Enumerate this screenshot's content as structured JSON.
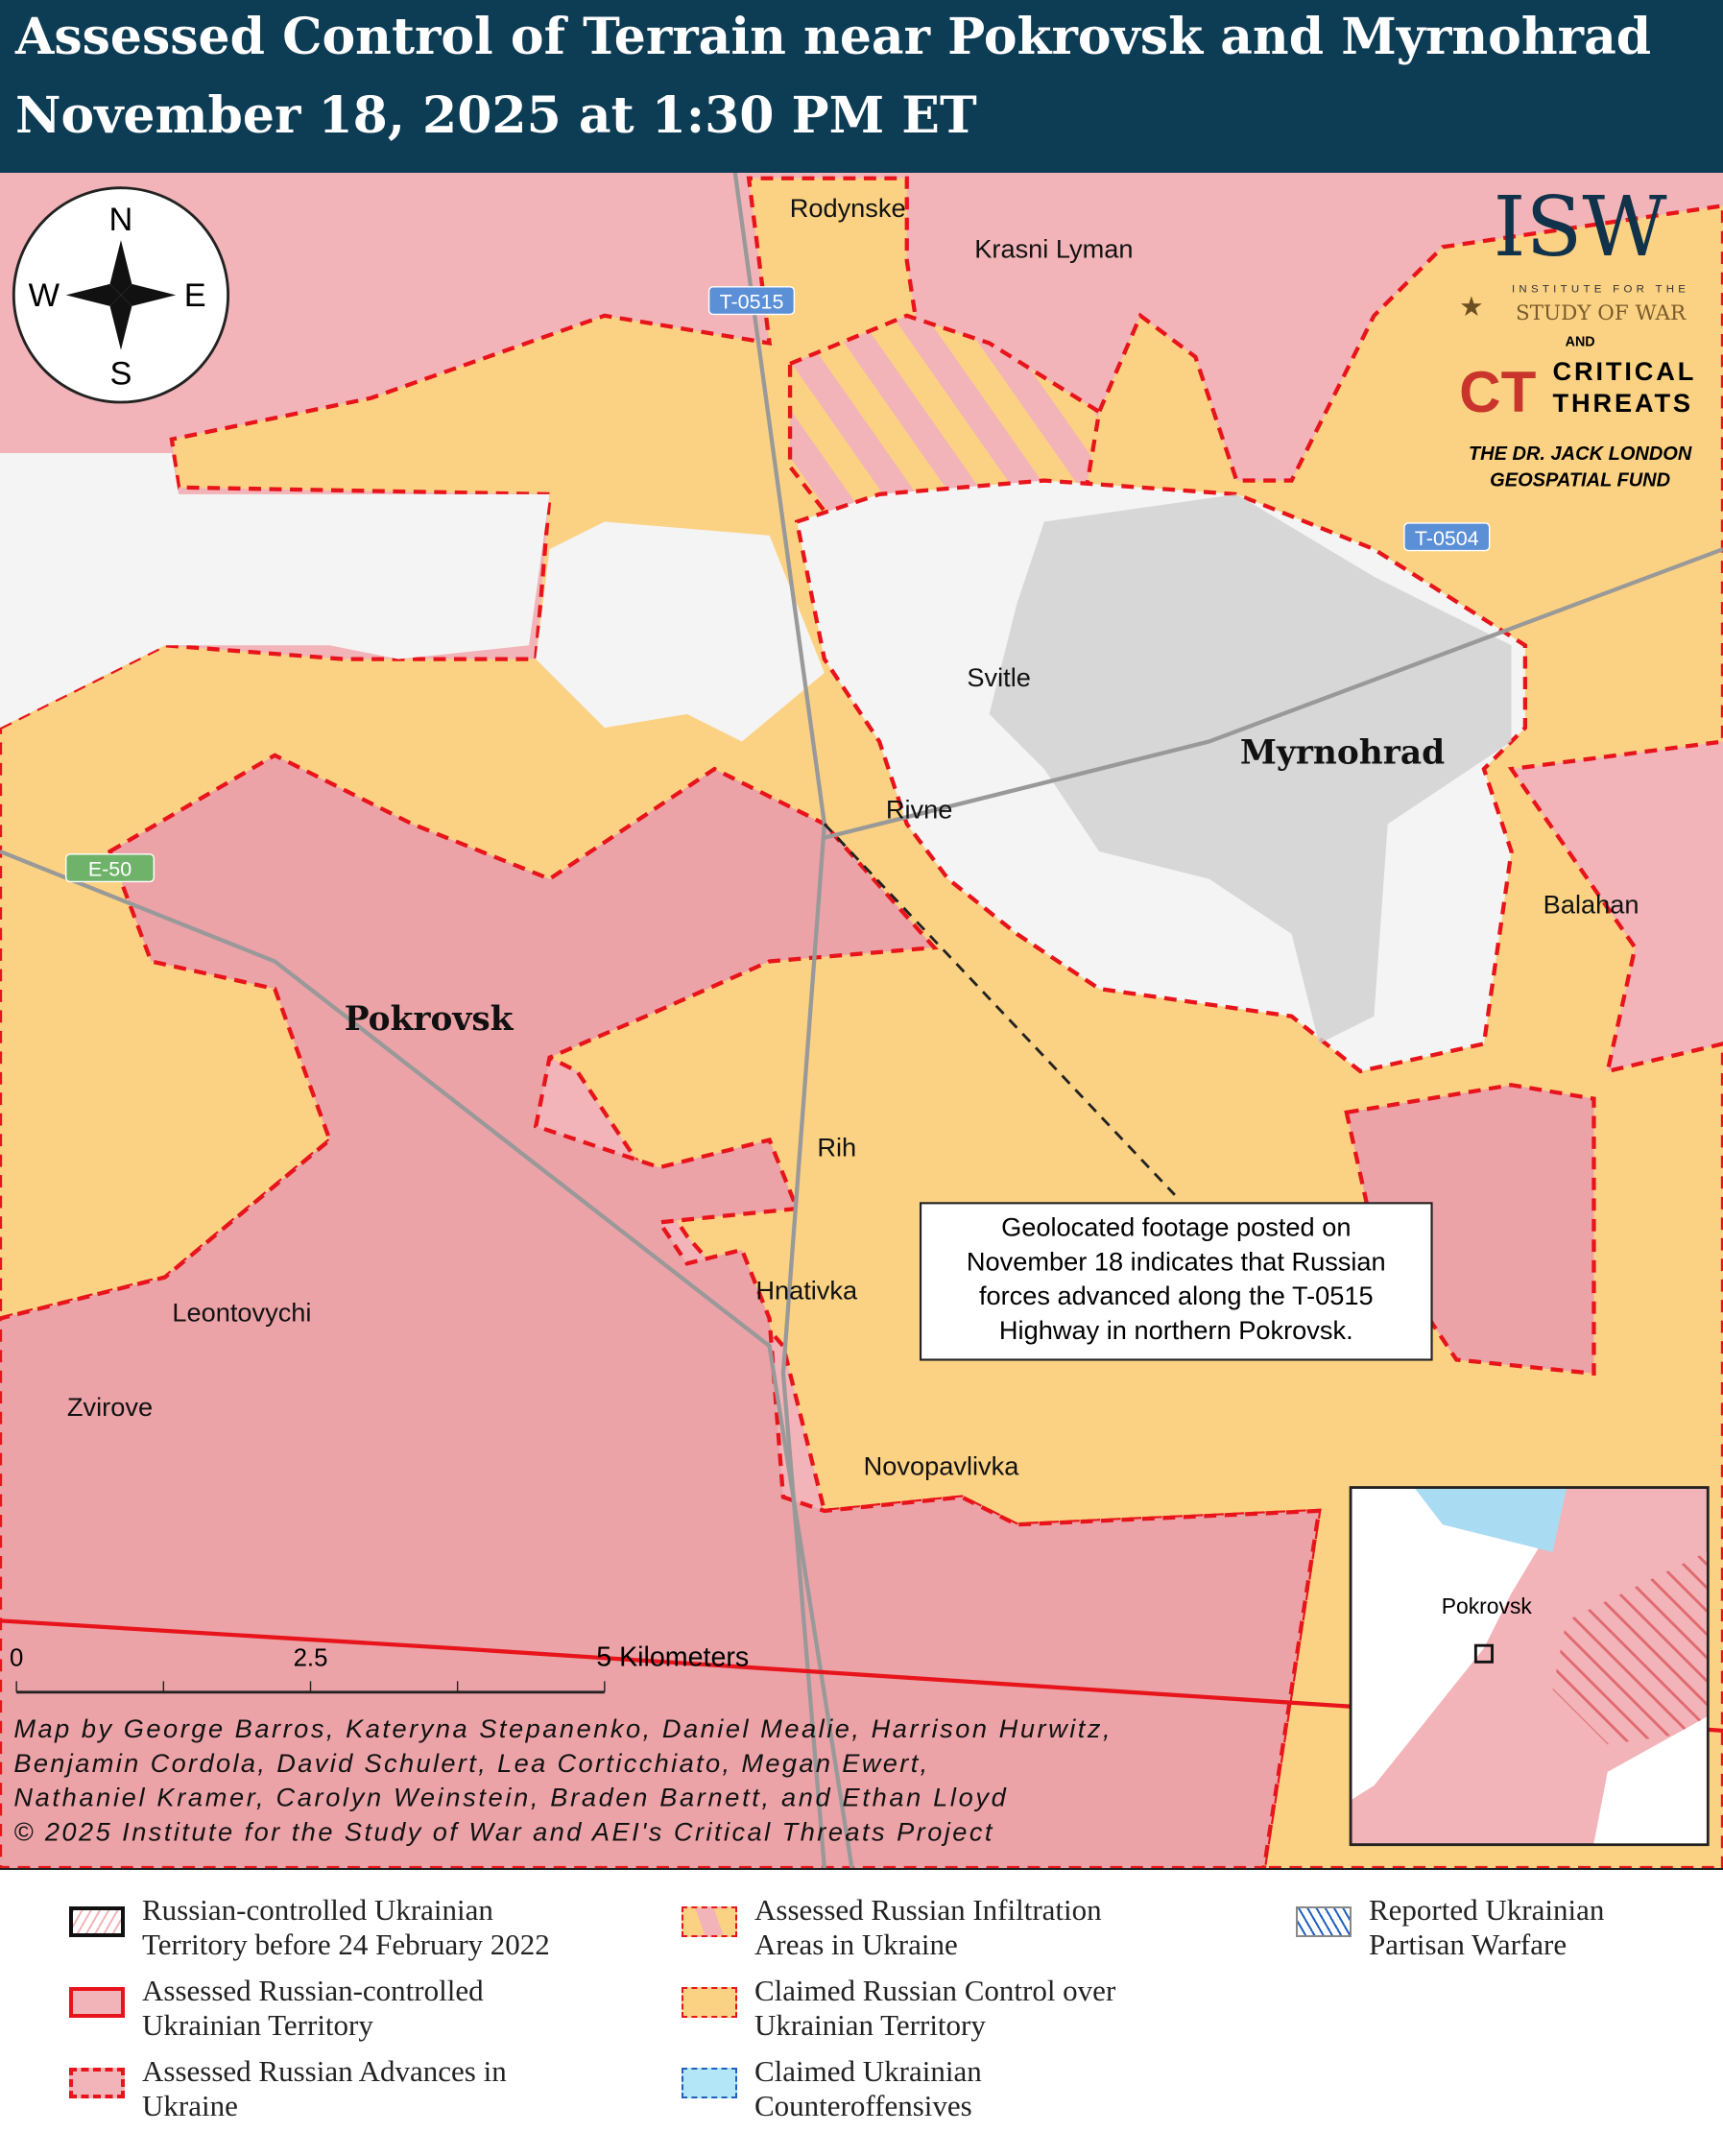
{
  "header": {
    "title": "Assessed Control of Terrain near Pokrovsk and Myrnohrad",
    "subtitle": "November 18, 2025 at 1:30 PM ET"
  },
  "compass": {
    "n": "N",
    "s": "S",
    "e": "E",
    "w": "W"
  },
  "colors": {
    "russian_controlled": "#f2b4b8",
    "claimed": "#fbd283",
    "ukrainian": "#f4f4f4",
    "urban": "#c9c9c9",
    "advance_line": "#e8141b",
    "header": "#0d3c55"
  },
  "places": {
    "rodynske": "Rodynske",
    "krasni_lyman": "Krasni Lyman",
    "svitle": "Svitle",
    "myrnohrad": "Myrnohrad",
    "rivne": "Rivne",
    "balahan": "Balahan",
    "pokrovsk": "Pokrovsk",
    "rih": "Rih",
    "hnativka": "Hnativka",
    "leontovychi": "Leontovychi",
    "zvirove": "Zvirove",
    "novopavlivka": "Novopavlivka"
  },
  "roads": {
    "t0515": "T-0515",
    "t0504": "T-0504",
    "e50": "E-50"
  },
  "logo": {
    "isw": "ISW",
    "isw_line1": "INSTITUTE FOR THE",
    "isw_line2": "STUDY OF WAR",
    "and": "AND",
    "ct": "CT",
    "ct_line1": "CRITICAL",
    "ct_line2": "THREATS",
    "fund_line1": "THE DR. JACK LONDON",
    "fund_line2": "GEOSPATIAL FUND"
  },
  "callout": {
    "lines": [
      "Geolocated footage posted on",
      "November 18 indicates that Russian",
      "forces advanced along the T-0515",
      "Highway in northern Pokrovsk."
    ]
  },
  "scale": {
    "t0": "0",
    "t1": "2.5",
    "t2": "5 Kilometers"
  },
  "credits": [
    "Map by George Barros, Kateryna Stepanenko, Daniel Mealie, Harrison Hurwitz,",
    "Benjamin Cordola, David Schulert, Lea Corticchiato, Megan Ewert,",
    "Nathaniel Kramer, Carolyn Weinstein, Braden Barnett, and Ethan Lloyd",
    "© 2025 Institute for the Study of War and AEI's Critical Threats Project"
  ],
  "inset": {
    "label": "Pokrovsk"
  },
  "legend": [
    {
      "label1": "Russian-controlled Ukrainian",
      "label2": "Territory before 24 February 2022"
    },
    {
      "label1": "Assessed Russian-controlled",
      "label2": "Ukrainian Territory"
    },
    {
      "label1": "Assessed Russian Advances in",
      "label2": "Ukraine"
    },
    {
      "label1": "Assessed Russian Infiltration",
      "label2": "Areas in Ukraine"
    },
    {
      "label1": "Claimed Russian Control over",
      "label2": "Ukrainian Territory"
    },
    {
      "label1": "Claimed Ukrainian",
      "label2": "Counteroffensives"
    },
    {
      "label1": "Reported Ukrainian",
      "label2": "Partisan Warfare"
    }
  ]
}
